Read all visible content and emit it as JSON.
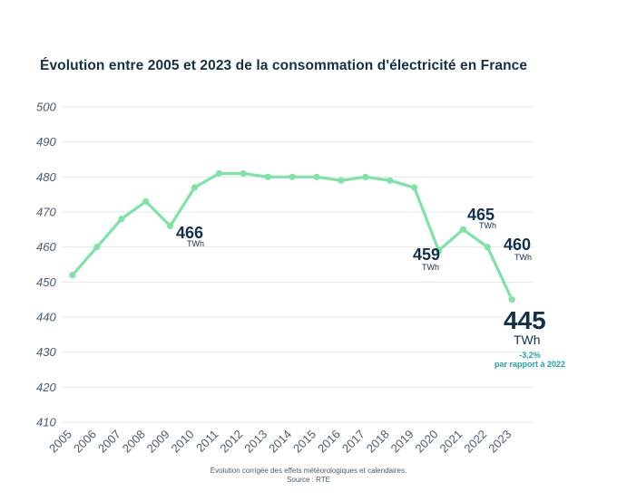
{
  "chart_data": {
    "type": "line",
    "title": "Évolution entre 2005 et 2023 de la consommation d'électricité en France",
    "x": [
      "2005",
      "2006",
      "2007",
      "2008",
      "2009",
      "2010",
      "2011",
      "2012",
      "2013",
      "2014",
      "2015",
      "2016",
      "2017",
      "2018",
      "2019",
      "2020",
      "2021",
      "2022",
      "2023"
    ],
    "series": [
      {
        "values": [
          452,
          460,
          468,
          473,
          466,
          477,
          481,
          481,
          480,
          480,
          480,
          479,
          480,
          479,
          477,
          459,
          465,
          460,
          445
        ]
      }
    ],
    "ylim": [
      410,
      500
    ],
    "yticks": [
      410,
      420,
      430,
      440,
      450,
      460,
      470,
      480,
      490,
      500
    ],
    "grid": true,
    "line_color": "#7ee3a5",
    "annotations": [
      {
        "year": "2009",
        "value": "466",
        "unit": "TWh"
      },
      {
        "year": "2020",
        "value": "459",
        "unit": "TWh"
      },
      {
        "year": "2021",
        "value": "465",
        "unit": "TWh"
      },
      {
        "year": "2022",
        "value": "460",
        "unit": "TWh"
      },
      {
        "year": "2023",
        "value": "445",
        "unit": "TWh",
        "change": "-3,2%",
        "change_label": "par rapport à 2022"
      }
    ]
  },
  "footer": {
    "note": "Évolution corrigée des effets météorologiques et calendaires.",
    "source": "Source : RTE"
  }
}
